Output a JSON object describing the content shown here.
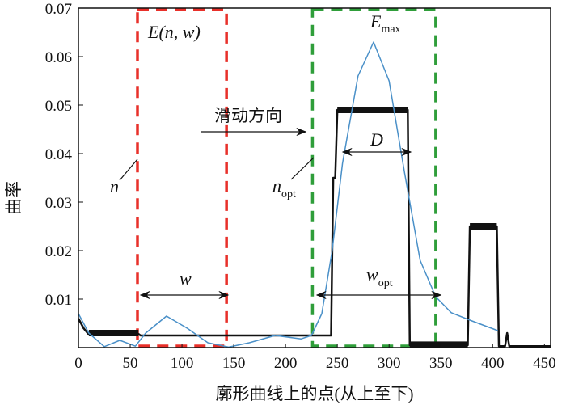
{
  "chart_data": {
    "type": "line",
    "xlabel": "廓形曲线上的点(从上至下)",
    "ylabel": "曲率",
    "xlim": [
      0,
      456
    ],
    "ylim": [
      0,
      0.07
    ],
    "xticks": [
      "0",
      "50",
      "100",
      "150",
      "200",
      "250",
      "300",
      "350",
      "400",
      "450"
    ],
    "yticks": [
      "0.01",
      "0.02",
      "0.03",
      "0.04",
      "0.05",
      "0.06",
      "0.07"
    ],
    "grid": false,
    "series": [
      {
        "color": "#111111",
        "points": [
          [
            0,
            0.006
          ],
          [
            5,
            0.004
          ],
          [
            10,
            0.0027
          ],
          [
            20,
            0.003
          ],
          [
            40,
            0.003
          ],
          [
            58,
            0.0028
          ],
          [
            60,
            0.0025
          ],
          [
            150,
            0.0025
          ],
          [
            244,
            0.0025
          ],
          [
            246,
            0.035
          ],
          [
            248,
            0.035
          ],
          [
            250,
            0.049
          ],
          [
            318,
            0.049
          ],
          [
            320,
            0.0005
          ],
          [
            376,
            0.0005
          ],
          [
            378,
            0.025
          ],
          [
            404,
            0.025
          ],
          [
            406,
            0.0003
          ],
          [
            412,
            0.0003
          ],
          [
            414,
            0.003
          ],
          [
            416,
            0.0003
          ],
          [
            456,
            0.0003
          ]
        ]
      },
      {
        "color": "#4a90c8",
        "points": [
          [
            0,
            0.007
          ],
          [
            10,
            0.003
          ],
          [
            25,
            0.0002
          ],
          [
            40,
            0.0015
          ],
          [
            55,
            0.0003
          ],
          [
            65,
            0.003
          ],
          [
            85,
            0.0065
          ],
          [
            105,
            0.004
          ],
          [
            125,
            0.001
          ],
          [
            145,
            0.0001
          ],
          [
            165,
            0.001
          ],
          [
            190,
            0.0025
          ],
          [
            215,
            0.0018
          ],
          [
            225,
            0.0025
          ],
          [
            235,
            0.007
          ],
          [
            245,
            0.02
          ],
          [
            255,
            0.038
          ],
          [
            270,
            0.056
          ],
          [
            285,
            0.063
          ],
          [
            300,
            0.055
          ],
          [
            315,
            0.036
          ],
          [
            330,
            0.018
          ],
          [
            345,
            0.0105
          ],
          [
            360,
            0.0072
          ],
          [
            380,
            0.0055
          ],
          [
            405,
            0.0035
          ]
        ]
      }
    ],
    "annotations": {
      "window": "E(n, w)",
      "emax": "E",
      "emax_sub": "max",
      "direction": "滑动方向",
      "n": "n",
      "nopt": "n",
      "nopt_sub": "opt",
      "D": "D",
      "w": "w",
      "wopt": "w",
      "wopt_sub": "opt"
    },
    "windows": [
      {
        "color": "#e8302a",
        "x": [
          57,
          143
        ]
      },
      {
        "color": "#2f9e3a",
        "x": [
          226,
          345
        ]
      }
    ]
  }
}
